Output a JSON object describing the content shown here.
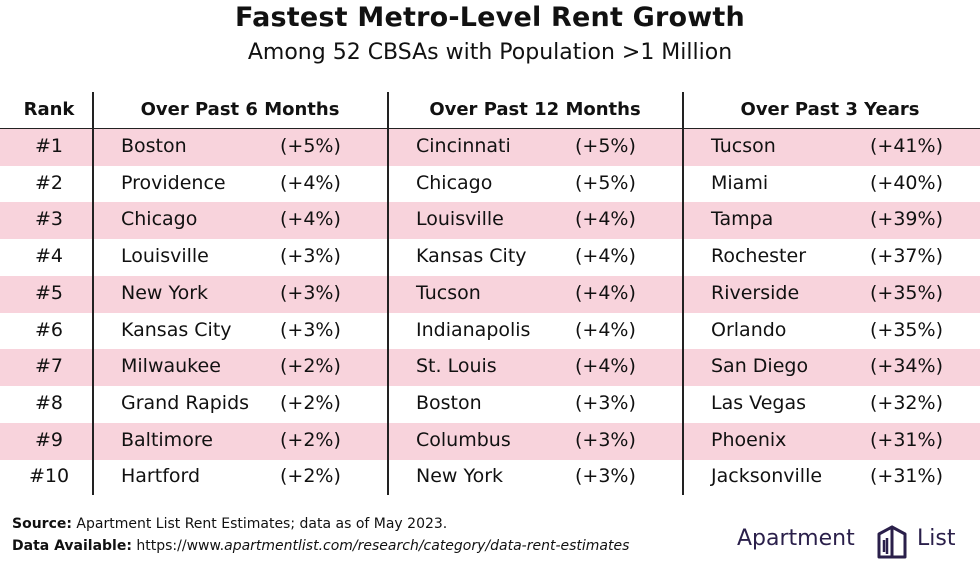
{
  "title": "Fastest Metro-Level Rent Growth",
  "subtitle": "Among 52 CBSAs with Population >1 Million",
  "headers": {
    "rank": "Rank",
    "col1": "Over Past 6 Months",
    "col2": "Over Past 12 Months",
    "col3": "Over Past 3 Years"
  },
  "rows": [
    {
      "rank": "#1",
      "c1": "Boston",
      "v1": "(+5%)",
      "c2": "Cincinnati",
      "v2": "(+5%)",
      "c3": "Tucson",
      "v3": "(+41%)"
    },
    {
      "rank": "#2",
      "c1": "Providence",
      "v1": "(+4%)",
      "c2": "Chicago",
      "v2": "(+5%)",
      "c3": "Miami",
      "v3": "(+40%)"
    },
    {
      "rank": "#3",
      "c1": "Chicago",
      "v1": "(+4%)",
      "c2": "Louisville",
      "v2": "(+4%)",
      "c3": "Tampa",
      "v3": "(+39%)"
    },
    {
      "rank": "#4",
      "c1": "Louisville",
      "v1": "(+3%)",
      "c2": "Kansas City",
      "v2": "(+4%)",
      "c3": "Rochester",
      "v3": "(+37%)"
    },
    {
      "rank": "#5",
      "c1": "New York",
      "v1": "(+3%)",
      "c2": "Tucson",
      "v2": "(+4%)",
      "c3": "Riverside",
      "v3": "(+35%)"
    },
    {
      "rank": "#6",
      "c1": "Kansas City",
      "v1": "(+3%)",
      "c2": "Indianapolis",
      "v2": "(+4%)",
      "c3": "Orlando",
      "v3": "(+35%)"
    },
    {
      "rank": "#7",
      "c1": "Milwaukee",
      "v1": "(+2%)",
      "c2": "St. Louis",
      "v2": "(+4%)",
      "c3": "San Diego",
      "v3": "(+34%)"
    },
    {
      "rank": "#8",
      "c1": "Grand Rapids",
      "v1": "(+2%)",
      "c2": "Boston",
      "v2": "(+3%)",
      "c3": "Las Vegas",
      "v3": "(+32%)"
    },
    {
      "rank": "#9",
      "c1": "Baltimore",
      "v1": "(+2%)",
      "c2": "Columbus",
      "v2": "(+3%)",
      "c3": "Phoenix",
      "v3": "(+31%)"
    },
    {
      "rank": "#10",
      "c1": "Hartford",
      "v1": "(+2%)",
      "c2": "New York",
      "v2": "(+3%)",
      "c3": "Jacksonville",
      "v3": "(+31%)"
    }
  ],
  "footer": {
    "source_label": "Source:",
    "source_text": " Apartment List Rent Estimates; data as of May 2023.",
    "data_label": "Data Available:",
    "data_prefix": "  https://www.",
    "data_url": "apartmentlist.com/research/category/data-rent-estimates"
  },
  "logo": {
    "word1": "Apartment",
    "word2": "List"
  },
  "colors": {
    "row_shade": "#f8d3dc",
    "logo": "#2a1f4a"
  }
}
